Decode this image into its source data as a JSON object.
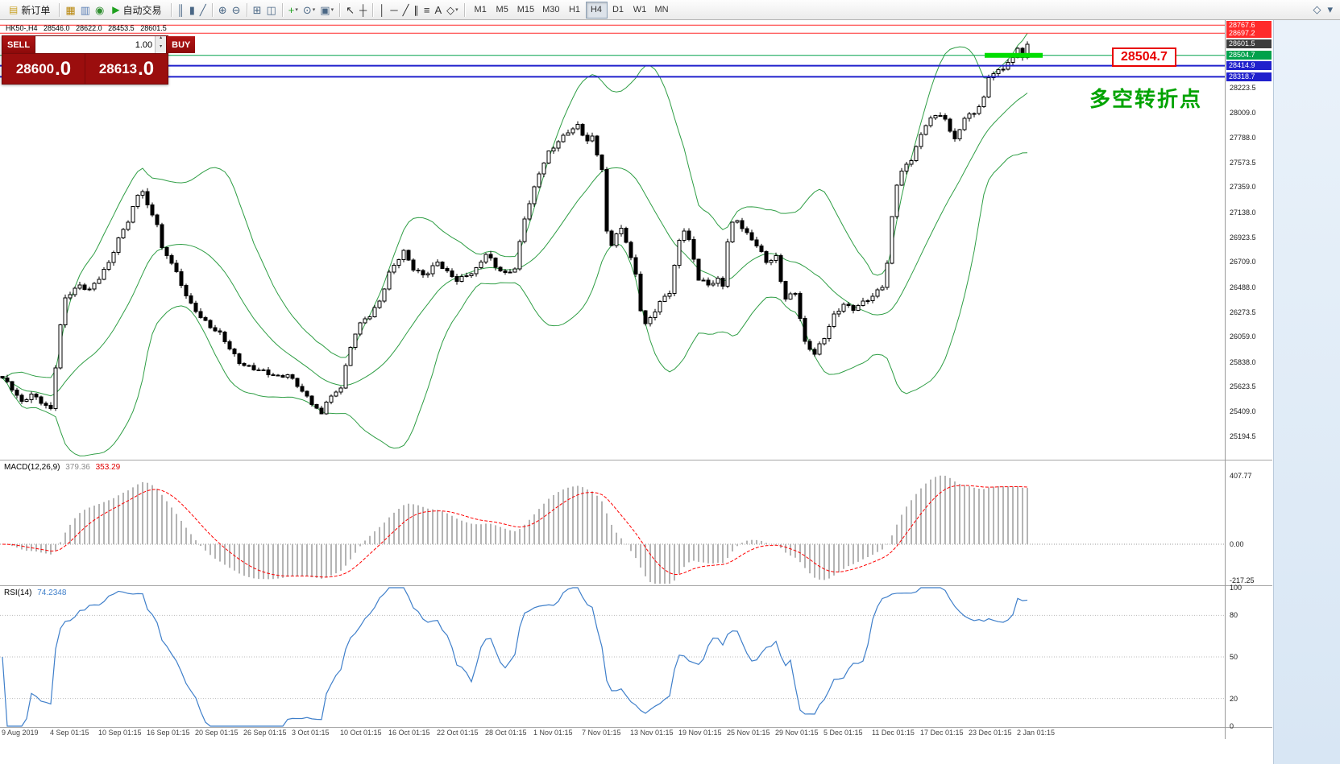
{
  "toolbar": {
    "items": [
      {
        "type": "button",
        "name": "new-order-button",
        "icon": "new-order-icon",
        "glyph": "▤",
        "glyph_color": "#c9a227",
        "label": "新订单"
      },
      {
        "type": "sep"
      },
      {
        "type": "icon",
        "name": "chart-window-icon",
        "glyph": "▦",
        "color": "#b8860b"
      },
      {
        "type": "icon",
        "name": "profiles-icon",
        "glyph": "▥",
        "color": "#5b7fb5"
      },
      {
        "type": "icon",
        "name": "data-window-icon",
        "glyph": "◉",
        "color": "#2f8f2f"
      },
      {
        "type": "button",
        "name": "auto-trading-button",
        "icon": "play-icon",
        "glyph": "▶",
        "glyph_color": "#1fa11f",
        "label": "自动交易"
      },
      {
        "type": "sep"
      },
      {
        "type": "icon",
        "name": "bar-chart-icon",
        "glyph": "║",
        "color": "#4a6785"
      },
      {
        "type": "icon",
        "name": "candlestick-chart-icon",
        "glyph": "▮",
        "color": "#4a6785"
      },
      {
        "type": "icon",
        "name": "line-chart-icon",
        "glyph": "╱",
        "color": "#4a6785"
      },
      {
        "type": "sep"
      },
      {
        "type": "icon",
        "name": "zoom-in-icon",
        "glyph": "⊕",
        "color": "#4a6785"
      },
      {
        "type": "icon",
        "name": "zoom-out-icon",
        "glyph": "⊖",
        "color": "#4a6785"
      },
      {
        "type": "sep"
      },
      {
        "type": "icon",
        "name": "tile-windows-icon",
        "glyph": "⊞",
        "color": "#4a6785"
      },
      {
        "type": "icon",
        "name": "cascade-windows-icon",
        "glyph": "◫",
        "color": "#4a6785"
      },
      {
        "type": "sep"
      },
      {
        "type": "icon",
        "name": "indicators-menu-icon",
        "glyph": "+",
        "color": "#1fa11f",
        "caret": true
      },
      {
        "type": "icon",
        "name": "periods-menu-icon",
        "glyph": "⊙",
        "color": "#4a6785",
        "caret": true
      },
      {
        "type": "icon",
        "name": "templates-menu-icon",
        "glyph": "▣",
        "color": "#4a6785",
        "caret": true
      },
      {
        "type": "sep"
      },
      {
        "type": "icon",
        "name": "cursor-icon",
        "glyph": "↖",
        "color": "#333333"
      },
      {
        "type": "icon",
        "name": "crosshair-icon",
        "glyph": "┼",
        "color": "#333333"
      },
      {
        "type": "sep"
      },
      {
        "type": "icon",
        "name": "vertical-line-icon",
        "glyph": "│",
        "color": "#333333"
      },
      {
        "type": "icon",
        "name": "horizontal-line-icon",
        "glyph": "─",
        "color": "#333333"
      },
      {
        "type": "icon",
        "name": "trendline-icon",
        "glyph": "╱",
        "color": "#333333"
      },
      {
        "type": "icon",
        "name": "channel-icon",
        "glyph": "∥",
        "color": "#333333"
      },
      {
        "type": "icon",
        "name": "fibonacci-icon",
        "glyph": "≡",
        "color": "#333333"
      },
      {
        "type": "icon",
        "name": "text-label-icon",
        "glyph": "A",
        "color": "#333333"
      },
      {
        "type": "icon",
        "name": "arrows-icon",
        "glyph": "◇",
        "color": "#333333",
        "caret": true
      },
      {
        "type": "sep"
      },
      {
        "type": "timeframes"
      }
    ],
    "timeframes": [
      {
        "label": "M1",
        "active": false
      },
      {
        "label": "M5",
        "active": false
      },
      {
        "label": "M15",
        "active": false
      },
      {
        "label": "M30",
        "active": false
      },
      {
        "label": "H1",
        "active": false
      },
      {
        "label": "H4",
        "active": true
      },
      {
        "label": "D1",
        "active": false
      },
      {
        "label": "W1",
        "active": false
      },
      {
        "label": "MN",
        "active": false
      }
    ],
    "right_icons": [
      {
        "name": "window-options-icon",
        "glyph": "◇"
      },
      {
        "name": "toolbar-overflow-icon",
        "glyph": "▾"
      }
    ]
  },
  "symbol_bar": {
    "symbol": "HK50-,H4",
    "open": "28546.0",
    "high": "28622.0",
    "low": "28453.5",
    "close": "28601.5"
  },
  "trade_panel": {
    "sell_label": "SELL",
    "buy_label": "BUY",
    "volume": "1.00",
    "sell_price_int": "28600",
    "sell_price_frac": ".0",
    "buy_price_int": "28613",
    "buy_price_frac": ".0"
  },
  "chart_data": {
    "type": "candlestick",
    "symbol": "HK50-",
    "timeframe": "H4",
    "bar_count": 213,
    "last_close": 28601.5,
    "close_anchors": [
      [
        0,
        25700
      ],
      [
        2,
        25600
      ],
      [
        4,
        25480
      ],
      [
        6,
        25560
      ],
      [
        8,
        25500
      ],
      [
        10,
        25430
      ],
      [
        11,
        25800
      ],
      [
        12,
        26150
      ],
      [
        13,
        26380
      ],
      [
        14,
        26430
      ],
      [
        16,
        26500
      ],
      [
        18,
        26470
      ],
      [
        20,
        26580
      ],
      [
        22,
        26700
      ],
      [
        24,
        26900
      ],
      [
        26,
        27060
      ],
      [
        28,
        27290
      ],
      [
        29,
        27340
      ],
      [
        30,
        27200
      ],
      [
        32,
        27050
      ],
      [
        33,
        26820
      ],
      [
        35,
        26700
      ],
      [
        37,
        26500
      ],
      [
        39,
        26340
      ],
      [
        41,
        26240
      ],
      [
        43,
        26150
      ],
      [
        45,
        26080
      ],
      [
        47,
        25950
      ],
      [
        49,
        25830
      ],
      [
        51,
        25800
      ],
      [
        53,
        25780
      ],
      [
        55,
        25740
      ],
      [
        57,
        25700
      ],
      [
        59,
        25720
      ],
      [
        61,
        25640
      ],
      [
        63,
        25540
      ],
      [
        65,
        25440
      ],
      [
        66,
        25380
      ],
      [
        67,
        25500
      ],
      [
        69,
        25560
      ],
      [
        70,
        25620
      ],
      [
        71,
        25800
      ],
      [
        72,
        25960
      ],
      [
        73,
        26100
      ],
      [
        74,
        26180
      ],
      [
        76,
        26250
      ],
      [
        78,
        26360
      ],
      [
        80,
        26600
      ],
      [
        82,
        26740
      ],
      [
        83,
        26800
      ],
      [
        85,
        26660
      ],
      [
        87,
        26600
      ],
      [
        88,
        26620
      ],
      [
        90,
        26700
      ],
      [
        92,
        26610
      ],
      [
        94,
        26550
      ],
      [
        96,
        26600
      ],
      [
        98,
        26650
      ],
      [
        100,
        26780
      ],
      [
        102,
        26660
      ],
      [
        104,
        26600
      ],
      [
        106,
        26660
      ],
      [
        108,
        27100
      ],
      [
        110,
        27350
      ],
      [
        111,
        27480
      ],
      [
        113,
        27650
      ],
      [
        115,
        27750
      ],
      [
        117,
        27850
      ],
      [
        119,
        27900
      ],
      [
        121,
        27760
      ],
      [
        122,
        27790
      ],
      [
        124,
        27500
      ],
      [
        125,
        26960
      ],
      [
        126,
        26860
      ],
      [
        127,
        26950
      ],
      [
        128,
        27000
      ],
      [
        129,
        26900
      ],
      [
        130,
        26750
      ],
      [
        131,
        26600
      ],
      [
        132,
        26300
      ],
      [
        133,
        26160
      ],
      [
        134,
        26210
      ],
      [
        136,
        26350
      ],
      [
        138,
        26450
      ],
      [
        140,
        26900
      ],
      [
        141,
        27000
      ],
      [
        142,
        26900
      ],
      [
        144,
        26560
      ],
      [
        146,
        26500
      ],
      [
        148,
        26550
      ],
      [
        149,
        26500
      ],
      [
        150,
        26900
      ],
      [
        151,
        27050
      ],
      [
        152,
        27080
      ],
      [
        154,
        26950
      ],
      [
        156,
        26850
      ],
      [
        158,
        26700
      ],
      [
        160,
        26750
      ],
      [
        161,
        26550
      ],
      [
        162,
        26400
      ],
      [
        164,
        26450
      ],
      [
        166,
        26000
      ],
      [
        167,
        25950
      ],
      [
        168,
        25900
      ],
      [
        170,
        26050
      ],
      [
        172,
        26250
      ],
      [
        174,
        26350
      ],
      [
        176,
        26300
      ],
      [
        178,
        26350
      ],
      [
        180,
        26400
      ],
      [
        182,
        26500
      ],
      [
        183,
        26700
      ],
      [
        184,
        27100
      ],
      [
        185,
        27400
      ],
      [
        186,
        27500
      ],
      [
        187,
        27550
      ],
      [
        188,
        27600
      ],
      [
        190,
        27800
      ],
      [
        191,
        27900
      ],
      [
        192,
        27950
      ],
      [
        194,
        28000
      ],
      [
        195,
        27950
      ],
      [
        196,
        27850
      ],
      [
        197,
        27800
      ],
      [
        198,
        27850
      ],
      [
        199,
        27950
      ],
      [
        200,
        28000
      ],
      [
        201,
        27980
      ],
      [
        202,
        28050
      ],
      [
        203,
        28150
      ],
      [
        204,
        28300
      ],
      [
        205,
        28350
      ],
      [
        206,
        28400
      ],
      [
        207,
        28380
      ],
      [
        208,
        28450
      ],
      [
        209,
        28500
      ],
      [
        210,
        28550
      ],
      [
        211,
        28480
      ],
      [
        212,
        28601.5
      ]
    ],
    "price_levels": [
      {
        "label": "28767.6",
        "price": 28767.6,
        "color": "#ff2a2a",
        "line": true,
        "width": 1
      },
      {
        "label": "28697.2",
        "price": 28697.2,
        "color": "#ff2a2a",
        "line": true,
        "width": 1
      },
      {
        "label": "28601.5",
        "price": 28601.5,
        "color": "#3c3c3c",
        "line": false,
        "width": 1
      },
      {
        "label": "28504.7",
        "price": 28504.7,
        "color": "#00a14b",
        "line": true,
        "width": 1
      },
      {
        "label": "28414.9",
        "price": 28414.9,
        "color": "#2020cc",
        "line": true,
        "width": 2
      },
      {
        "label": "28318.7",
        "price": 28318.7,
        "color": "#2020cc",
        "line": true,
        "width": 2
      }
    ],
    "y_ticks": [
      "28223.5",
      "28009.0",
      "27788.0",
      "27573.5",
      "27359.0",
      "27138.0",
      "26923.5",
      "26709.0",
      "26488.0",
      "26273.5",
      "26059.0",
      "25838.0",
      "25623.5",
      "25409.0",
      "25194.5"
    ],
    "x_labels": [
      "9 Aug 2019",
      "4 Sep 01:15",
      "10 Sep 01:15",
      "16 Sep 01:15",
      "20 Sep 01:15",
      "26 Sep 01:15",
      "3 Oct 01:15",
      "10 Oct 01:15",
      "16 Oct 01:15",
      "22 Oct 01:15",
      "28 Oct 01:15",
      "1 Nov 01:15",
      "7 Nov 01:15",
      "13 Nov 01:15",
      "19 Nov 01:15",
      "25 Nov 01:15",
      "29 Nov 01:15",
      "5 Dec 01:15",
      "11 Dec 01:15",
      "17 Dec 01:15",
      "23 Dec 01:15",
      "2 Jan 01:15"
    ],
    "indicators": {
      "bollinger": {
        "period": 20,
        "deviation": 2
      },
      "macd": {
        "name": "MACD(12,26,9)",
        "value": "379.36",
        "signal_value": "353.29",
        "ticks": [
          {
            "label": "407.77",
            "value": 407.77
          },
          {
            "label": "0.00",
            "value": 0
          },
          {
            "label": "-217.25",
            "value": -217.25
          }
        ]
      },
      "rsi": {
        "name": "RSI(14)",
        "value": "74.2348",
        "ticks": [
          {
            "label": "100",
            "value": 100
          },
          {
            "label": "80",
            "value": 80
          },
          {
            "label": "50",
            "value": 50
          },
          {
            "label": "20",
            "value": 20
          },
          {
            "label": "0",
            "value": 0
          }
        ],
        "levels": [
          80,
          50,
          20
        ]
      }
    },
    "annotations": {
      "price_callout": "28504.7",
      "turning_point_text": "多空转折点",
      "highlight_price": 28504.7
    }
  },
  "col": {
    "bull_candle": "#ffffff",
    "bear_candle": "#000000",
    "candle_outline": "#000000",
    "bollinger": "#2f9e45",
    "macd_histogram": "#b4b4b4",
    "macd_signal": "#ff0000",
    "rsi_line": "#3f7fca",
    "highlight_line": "#00dd00",
    "callout": "#e80000",
    "annotation": "#00a300",
    "panel_red": "#9b0e0e",
    "panel_red_dark": "#8c0a0a"
  }
}
